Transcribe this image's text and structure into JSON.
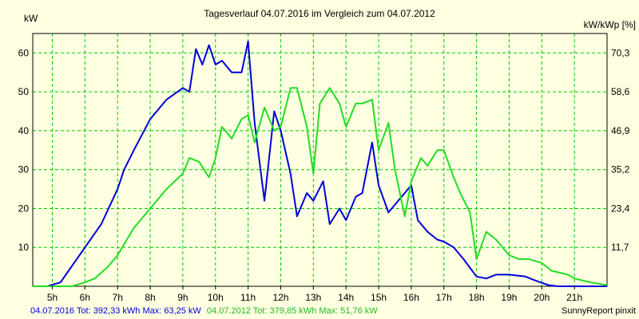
{
  "chart_data": {
    "type": "line",
    "title": "Tagesverlauf 04.07.2016 im Vergleich zum 04.07.2012",
    "ylabel_left": "kW",
    "ylabel_right": "kW/kWp [%]",
    "ylim": [
      0,
      65
    ],
    "xlim": [
      4.4,
      22
    ],
    "grid": true,
    "y_ticks": [
      10,
      20,
      30,
      40,
      50,
      60
    ],
    "y_ticks_right": [
      "11,7",
      "23,4",
      "35,2",
      "46,9",
      "58,6",
      "70,3"
    ],
    "x_ticks": [
      5,
      6,
      7,
      8,
      9,
      10,
      11,
      12,
      13,
      14,
      15,
      16,
      17,
      18,
      19,
      20,
      21
    ],
    "x_tick_labels": [
      "5h",
      "6h",
      "7h",
      "8h",
      "9h",
      "10h",
      "11h",
      "12h",
      "13h",
      "14h",
      "15h",
      "16h",
      "17h",
      "18h",
      "19h",
      "20h",
      "21h"
    ],
    "series": [
      {
        "color": "#0000dd",
        "points": [
          [
            4.4,
            0
          ],
          [
            4.85,
            0
          ],
          [
            5.25,
            1
          ],
          [
            5.5,
            4
          ],
          [
            6.0,
            10
          ],
          [
            6.5,
            16
          ],
          [
            7.0,
            25
          ],
          [
            7.2,
            30
          ],
          [
            7.5,
            35
          ],
          [
            8.0,
            43
          ],
          [
            8.5,
            48
          ],
          [
            9.0,
            51
          ],
          [
            9.2,
            50
          ],
          [
            9.4,
            61
          ],
          [
            9.6,
            57
          ],
          [
            9.8,
            62
          ],
          [
            10.0,
            57
          ],
          [
            10.2,
            58
          ],
          [
            10.5,
            55
          ],
          [
            10.8,
            55
          ],
          [
            11.0,
            63
          ],
          [
            11.2,
            42
          ],
          [
            11.5,
            22
          ],
          [
            11.8,
            45
          ],
          [
            12.0,
            40
          ],
          [
            12.3,
            29
          ],
          [
            12.5,
            18
          ],
          [
            12.8,
            24
          ],
          [
            13.0,
            22
          ],
          [
            13.3,
            27
          ],
          [
            13.5,
            16
          ],
          [
            13.8,
            20
          ],
          [
            14.0,
            17
          ],
          [
            14.3,
            23
          ],
          [
            14.5,
            24
          ],
          [
            14.8,
            37
          ],
          [
            15.0,
            26
          ],
          [
            15.3,
            19
          ],
          [
            15.5,
            21
          ],
          [
            16.0,
            26
          ],
          [
            16.2,
            17
          ],
          [
            16.5,
            14
          ],
          [
            16.8,
            12
          ],
          [
            17.0,
            11.5
          ],
          [
            17.3,
            10
          ],
          [
            17.6,
            7
          ],
          [
            18.0,
            2.5
          ],
          [
            18.3,
            2
          ],
          [
            18.6,
            3
          ],
          [
            19.0,
            3
          ],
          [
            19.5,
            2.5
          ],
          [
            19.8,
            1.5
          ],
          [
            20.2,
            0.3
          ],
          [
            20.5,
            0
          ],
          [
            22,
            0
          ]
        ]
      },
      {
        "color": "#22dd22",
        "points": [
          [
            4.4,
            0
          ],
          [
            5.0,
            0
          ],
          [
            5.6,
            0
          ],
          [
            6.0,
            1
          ],
          [
            6.3,
            2
          ],
          [
            6.7,
            5
          ],
          [
            7.0,
            8
          ],
          [
            7.5,
            15
          ],
          [
            8.0,
            20
          ],
          [
            8.5,
            25
          ],
          [
            9.0,
            29
          ],
          [
            9.2,
            33
          ],
          [
            9.5,
            32
          ],
          [
            9.8,
            28
          ],
          [
            10.0,
            33
          ],
          [
            10.2,
            41
          ],
          [
            10.5,
            38
          ],
          [
            10.8,
            43
          ],
          [
            11.0,
            44
          ],
          [
            11.2,
            37
          ],
          [
            11.5,
            46
          ],
          [
            11.8,
            40
          ],
          [
            12.0,
            41
          ],
          [
            12.3,
            51
          ],
          [
            12.5,
            51
          ],
          [
            12.8,
            41
          ],
          [
            13.0,
            29
          ],
          [
            13.2,
            47
          ],
          [
            13.5,
            51
          ],
          [
            13.8,
            47
          ],
          [
            14.0,
            41
          ],
          [
            14.3,
            47
          ],
          [
            14.5,
            47
          ],
          [
            14.8,
            48
          ],
          [
            15.0,
            35
          ],
          [
            15.3,
            42
          ],
          [
            15.5,
            30
          ],
          [
            15.8,
            18
          ],
          [
            16.0,
            27
          ],
          [
            16.3,
            33
          ],
          [
            16.5,
            31
          ],
          [
            16.8,
            35
          ],
          [
            17.0,
            35
          ],
          [
            17.3,
            28
          ],
          [
            17.5,
            24
          ],
          [
            17.8,
            19
          ],
          [
            18.0,
            7
          ],
          [
            18.3,
            14
          ],
          [
            18.6,
            12
          ],
          [
            19.0,
            8
          ],
          [
            19.3,
            7
          ],
          [
            19.6,
            7
          ],
          [
            20.0,
            6
          ],
          [
            20.3,
            4
          ],
          [
            20.8,
            3
          ],
          [
            21.0,
            2
          ],
          [
            21.5,
            1
          ],
          [
            22,
            0.3
          ]
        ]
      }
    ]
  },
  "footer": {
    "left_part1": "04.07.2016 Tot: 392,33 kWh Max: 63,25 kW",
    "left_part2": "04.07.2012 Tot: 379,85 kWh Max: 51,76 kW",
    "right": "SunnyReport pinxit"
  },
  "colors": {
    "background": "#ffffe1",
    "plot_background": "#ffffe1",
    "grid": "#00cc00",
    "series_2016": "#0000dd",
    "series_2012": "#22dd22"
  }
}
